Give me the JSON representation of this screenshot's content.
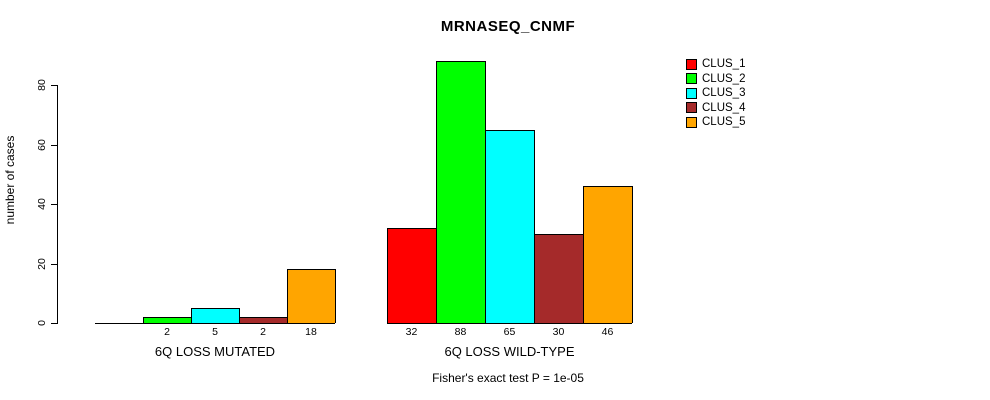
{
  "title": "MRNASEQ_CNMF",
  "y_axis_label": "number of cases",
  "footer": "Fisher's exact test P = 1e-05",
  "chart_data": {
    "type": "bar",
    "title": "MRNASEQ_CNMF",
    "ylabel": "number of cases",
    "ylim": [
      0,
      88
    ],
    "yticks": [
      0,
      20,
      40,
      60,
      80
    ],
    "grid": false,
    "legend_position": "right",
    "categories": [
      "6Q LOSS MUTATED",
      "6Q LOSS WILD-TYPE"
    ],
    "series": [
      {
        "name": "CLUS_1",
        "color": "#FF0000",
        "values": [
          0,
          32
        ]
      },
      {
        "name": "CLUS_2",
        "color": "#00FF00",
        "values": [
          2,
          88
        ]
      },
      {
        "name": "CLUS_3",
        "color": "#00FFFF",
        "values": [
          5,
          65
        ]
      },
      {
        "name": "CLUS_4",
        "color": "#A52A2A",
        "values": [
          2,
          30
        ]
      },
      {
        "name": "CLUS_5",
        "color": "#FFA500",
        "values": [
          18,
          46
        ]
      }
    ],
    "bar_value_labels": {
      "shown": true,
      "note": "zero values have no label"
    },
    "annotation": "Fisher's exact test P = 1e-05"
  }
}
